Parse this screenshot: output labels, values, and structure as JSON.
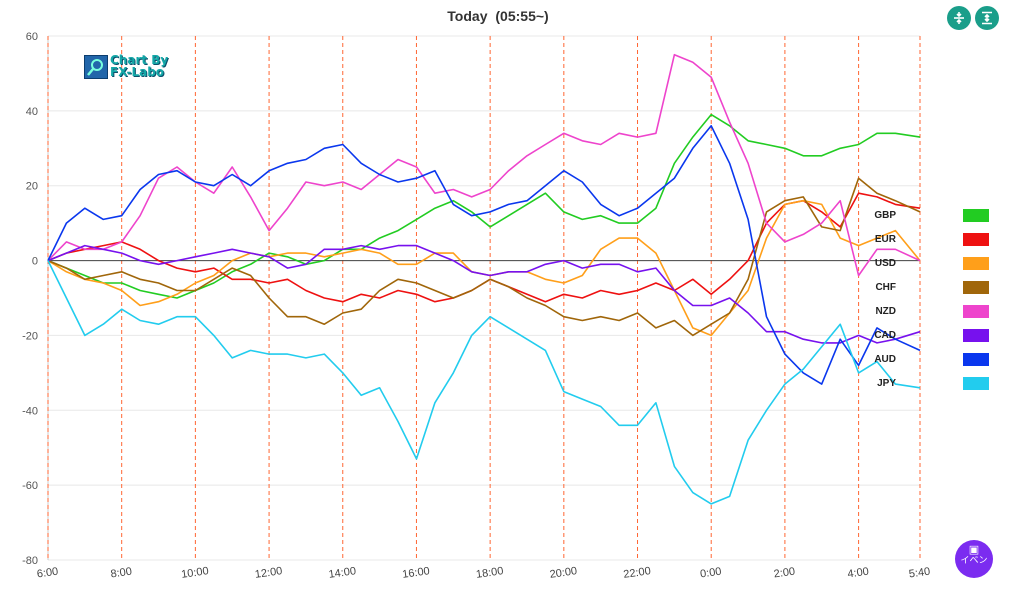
{
  "title": {
    "label": "Today",
    "time": "(05:55~)"
  },
  "logo": {
    "line1": "Chart By",
    "line2": "FX-Labo"
  },
  "event_button": {
    "label": "イベン"
  },
  "colors": {
    "GBP": "#22cc22",
    "EUR": "#ee1111",
    "USD": "#ff9f1a",
    "CHF": "#a0660a",
    "NZD": "#ee44cc",
    "CAD": "#7711ee",
    "AUD": "#0a37ee",
    "JPY": "#22ccee",
    "grid": "#e8e8e8",
    "session_line": "#ff6633",
    "teal": "#1a9e8a"
  },
  "chart_data": {
    "type": "line",
    "title": "Today (05:55~)",
    "xlabel": "",
    "ylabel": "",
    "ylim": [
      -80,
      60
    ],
    "yticks": [
      60,
      40,
      20,
      0,
      -20,
      -40,
      -60,
      -80
    ],
    "x_range": [
      "6:00",
      "5:40"
    ],
    "x_tick_labels": [
      "6:00",
      "8:00",
      "10:00",
      "12:00",
      "14:00",
      "16:00",
      "18:00",
      "20:00",
      "22:00",
      "0:00",
      "2:00",
      "4:00",
      "5:40"
    ],
    "session_lines": [
      "6:00",
      "8:00",
      "10:00",
      "12:00",
      "14:00",
      "16:00",
      "18:00",
      "20:00",
      "22:00",
      "0:00",
      "2:00",
      "4:00",
      "5:40"
    ],
    "grid": true,
    "legend_position": "right",
    "x": [
      "6:00",
      "6:30",
      "7:00",
      "7:30",
      "8:00",
      "8:30",
      "9:00",
      "9:30",
      "10:00",
      "10:30",
      "11:00",
      "11:30",
      "12:00",
      "12:30",
      "13:00",
      "13:30",
      "14:00",
      "14:30",
      "15:00",
      "15:30",
      "16:00",
      "16:30",
      "17:00",
      "17:30",
      "18:00",
      "18:30",
      "19:00",
      "19:30",
      "20:00",
      "20:30",
      "21:00",
      "21:30",
      "22:00",
      "22:30",
      "23:00",
      "23:30",
      "0:00",
      "0:30",
      "1:00",
      "1:30",
      "2:00",
      "2:30",
      "3:00",
      "3:30",
      "4:00",
      "4:30",
      "5:00",
      "5:40"
    ],
    "series": [
      {
        "name": "GBP",
        "values": [
          0,
          -2,
          -4,
          -6,
          -6,
          -8,
          -9,
          -10,
          -8,
          -6,
          -3,
          -1,
          2,
          1,
          -1,
          0,
          3,
          3,
          6,
          8,
          11,
          14,
          16,
          13,
          9,
          12,
          15,
          18,
          13,
          11,
          12,
          10,
          10,
          14,
          26,
          33,
          39,
          36,
          32,
          31,
          30,
          28,
          28,
          30,
          31,
          34,
          34,
          33
        ]
      },
      {
        "name": "EUR",
        "values": [
          0,
          2,
          3,
          4,
          5,
          3,
          0,
          -2,
          -3,
          -2,
          -5,
          -5,
          -6,
          -5,
          -8,
          -10,
          -11,
          -9,
          -10,
          -8,
          -9,
          -11,
          -10,
          -8,
          -5,
          -7,
          -9,
          -11,
          -9,
          -10,
          -8,
          -9,
          -8,
          -6,
          -8,
          -5,
          -9,
          -5,
          0,
          10,
          15,
          16,
          13,
          9,
          18,
          17,
          15,
          14
        ]
      },
      {
        "name": "USD",
        "values": [
          0,
          -3,
          -5,
          -6,
          -8,
          -12,
          -11,
          -9,
          -6,
          -4,
          0,
          2,
          1,
          2,
          2,
          1,
          2,
          3,
          2,
          -1,
          -1,
          2,
          2,
          -3,
          -4,
          -3,
          -3,
          -5,
          -6,
          -4,
          3,
          6,
          6,
          2,
          -8,
          -18,
          -20,
          -14,
          -8,
          6,
          15,
          16,
          15,
          6,
          4,
          6,
          8,
          0
        ]
      },
      {
        "name": "CHF",
        "values": [
          0,
          -2,
          -5,
          -4,
          -3,
          -5,
          -6,
          -8,
          -8,
          -5,
          -2,
          -4,
          -10,
          -15,
          -15,
          -17,
          -14,
          -13,
          -8,
          -5,
          -6,
          -8,
          -10,
          -8,
          -5,
          -7,
          -10,
          -12,
          -15,
          -16,
          -15,
          -16,
          -14,
          -18,
          -16,
          -20,
          -17,
          -14,
          -5,
          13,
          16,
          17,
          9,
          8,
          22,
          18,
          16,
          13
        ]
      },
      {
        "name": "NZD",
        "values": [
          0,
          5,
          3,
          3,
          5,
          12,
          22,
          25,
          21,
          18,
          25,
          17,
          8,
          14,
          21,
          20,
          21,
          19,
          23,
          27,
          25,
          18,
          19,
          17,
          19,
          24,
          28,
          31,
          34,
          32,
          31,
          34,
          33,
          34,
          55,
          53,
          49,
          37,
          26,
          10,
          5,
          7,
          10,
          16,
          -4,
          3,
          3,
          0
        ]
      },
      {
        "name": "CAD",
        "values": [
          0,
          2,
          4,
          3,
          2,
          0,
          -1,
          0,
          1,
          2,
          3,
          2,
          1,
          -2,
          -1,
          3,
          3,
          4,
          3,
          4,
          4,
          2,
          0,
          -3,
          -4,
          -3,
          -3,
          -1,
          0,
          -2,
          -1,
          -1,
          -3,
          -2,
          -8,
          -12,
          -12,
          -10,
          -14,
          -19,
          -19,
          -21,
          -22,
          -22,
          -20,
          -22,
          -21,
          -19
        ]
      },
      {
        "name": "AUD",
        "values": [
          0,
          10,
          14,
          11,
          12,
          19,
          23,
          24,
          21,
          20,
          23,
          20,
          24,
          26,
          27,
          30,
          31,
          26,
          23,
          21,
          22,
          24,
          15,
          12,
          13,
          15,
          16,
          20,
          24,
          21,
          15,
          12,
          14,
          18,
          22,
          30,
          36,
          26,
          11,
          -15,
          -25,
          -30,
          -33,
          -21,
          -28,
          -18,
          -21,
          -24
        ]
      },
      {
        "name": "JPY",
        "values": [
          0,
          -10,
          -20,
          -17,
          -13,
          -16,
          -17,
          -15,
          -15,
          -20,
          -26,
          -24,
          -25,
          -25,
          -26,
          -25,
          -30,
          -36,
          -34,
          -43,
          -53,
          -38,
          -30,
          -20,
          -15,
          -18,
          -21,
          -24,
          -35,
          -37,
          -39,
          -44,
          -44,
          -38,
          -55,
          -62,
          -65,
          -63,
          -48,
          -40,
          -33,
          -29,
          -23,
          -17,
          -30,
          -27,
          -33,
          -34
        ]
      }
    ]
  }
}
